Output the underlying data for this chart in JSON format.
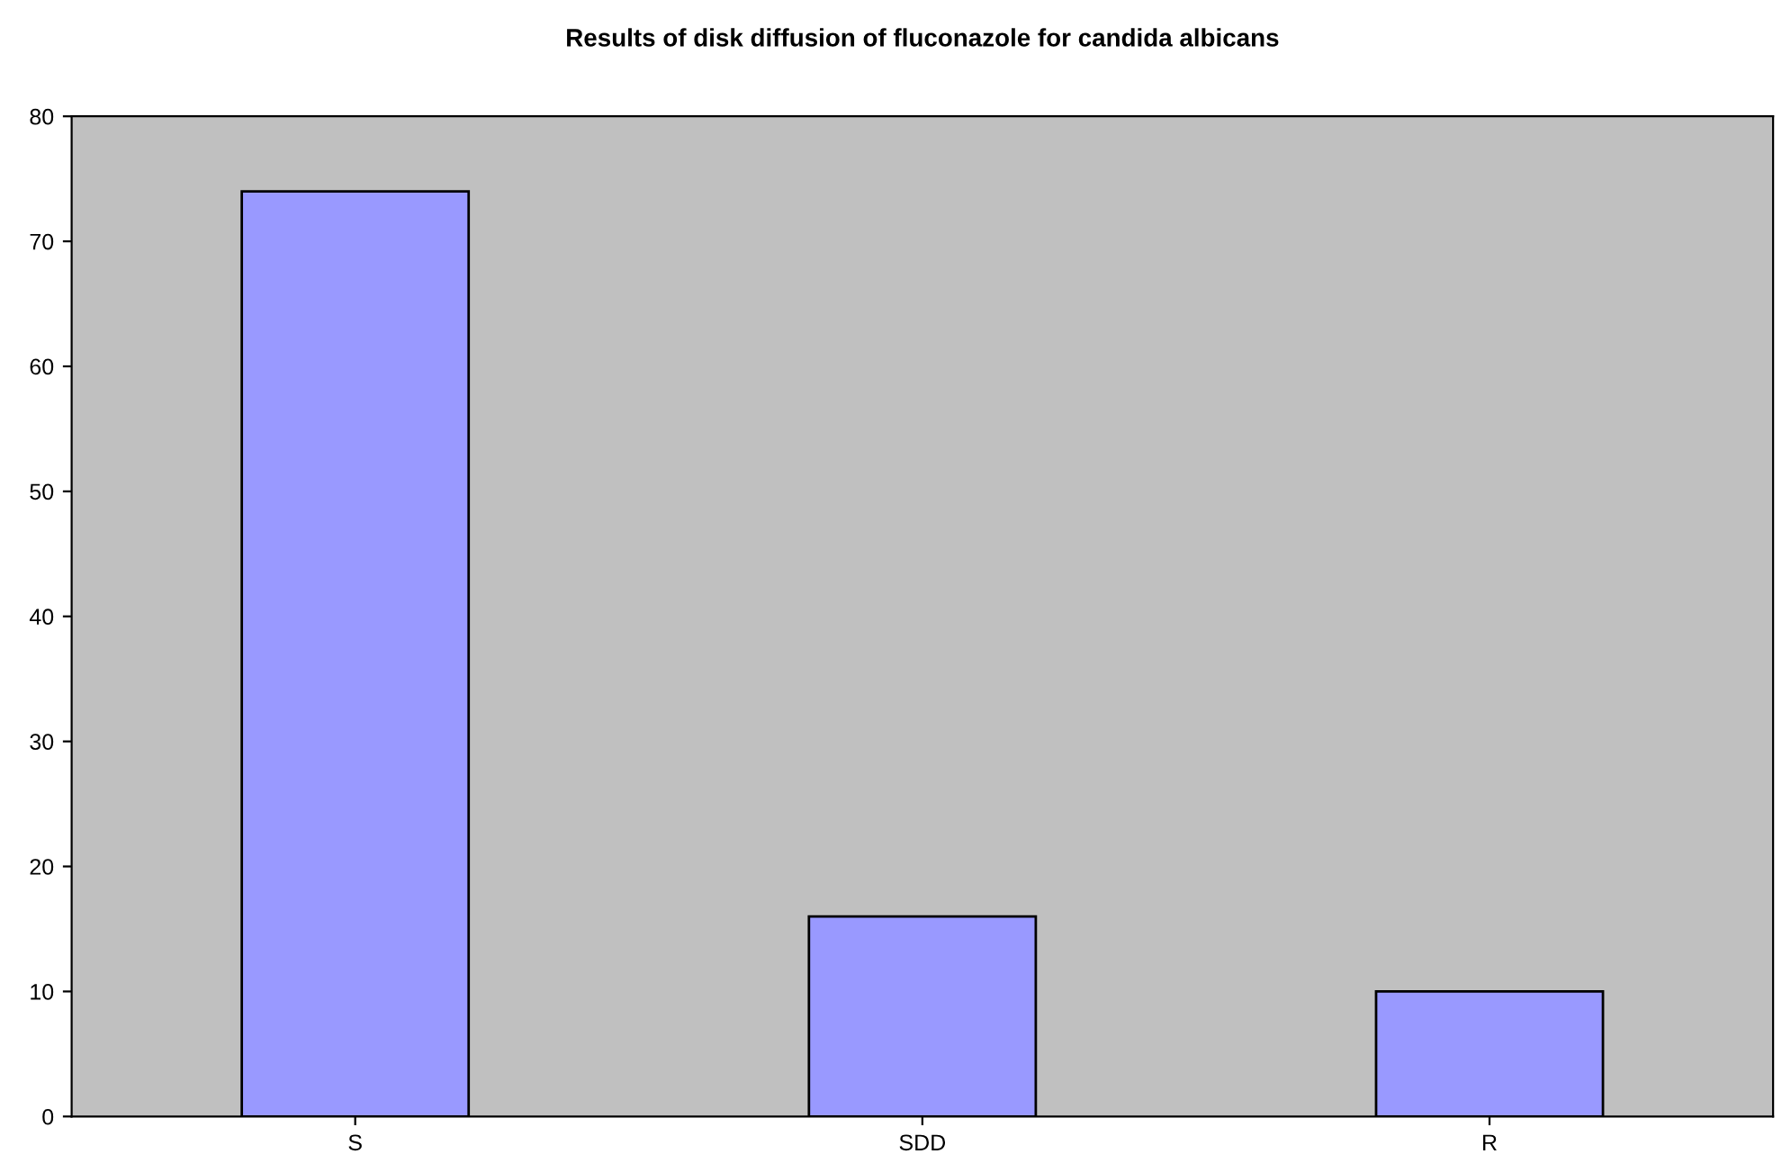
{
  "chart_data": {
    "type": "bar",
    "title": "Results of disk diffusion of fluconazole for candida albicans",
    "categories": [
      "S",
      "SDD",
      "R"
    ],
    "values": [
      74,
      16,
      10
    ],
    "color": "#9999ff",
    "ylim": [
      0,
      80
    ],
    "yticks": [
      0,
      10,
      20,
      30,
      40,
      50,
      60,
      70,
      80
    ],
    "grid": false
  }
}
